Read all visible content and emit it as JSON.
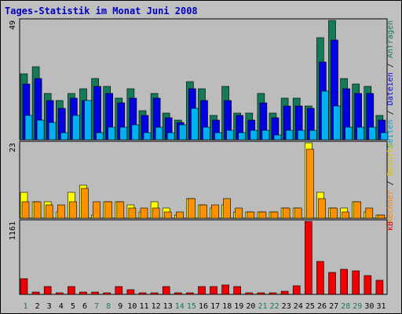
{
  "title": "Tages-Statistik im Monat Juni 2008",
  "chart_data": [
    {
      "type": "bar",
      "ymax_label": "49",
      "ylim": [
        0,
        49
      ],
      "categories": [
        "1",
        "2",
        "3",
        "4",
        "5",
        "6",
        "7",
        "8",
        "9",
        "10",
        "11",
        "12",
        "13",
        "14",
        "15",
        "16",
        "17",
        "18",
        "19",
        "20",
        "21",
        "22",
        "23",
        "24",
        "25",
        "26",
        "27",
        "28",
        "29",
        "30",
        "31"
      ],
      "series": [
        {
          "name": "Anfragen",
          "color": "#157a5a",
          "values": [
            27,
            30,
            19,
            16,
            19,
            21,
            25,
            22,
            17,
            21,
            12,
            19,
            11,
            8,
            24,
            21,
            10,
            22,
            11,
            11,
            19,
            11,
            17,
            17,
            14,
            42,
            49,
            25,
            23,
            22,
            10
          ]
        },
        {
          "name": "Dateien",
          "color": "#0000e0",
          "values": [
            23,
            25,
            16,
            13,
            17,
            16,
            22,
            19,
            15,
            17,
            10,
            17,
            9,
            7,
            21,
            16,
            8,
            16,
            10,
            8,
            15,
            9,
            14,
            14,
            13,
            32,
            41,
            21,
            19,
            19,
            8
          ]
        },
        {
          "name": "Seiten",
          "color": "#00b0f0",
          "values": [
            10,
            8,
            7,
            3,
            10,
            16,
            3,
            5,
            5,
            6,
            3,
            5,
            3,
            6,
            13,
            5,
            3,
            4,
            3,
            4,
            4,
            2,
            4,
            4,
            4,
            20,
            14,
            5,
            5,
            5,
            3
          ]
        }
      ],
      "right_label_parts": [
        {
          "text": "Seiten",
          "color": "#00a0d0"
        },
        {
          "text": " / ",
          "color": "#000000"
        },
        {
          "text": "Dateien",
          "color": "#0000e0"
        },
        {
          "text": " / ",
          "color": "#000000"
        },
        {
          "text": "Anfragen",
          "color": "#157a5a"
        }
      ]
    },
    {
      "type": "bar",
      "ymax_label": "23",
      "ylim": [
        0,
        23
      ],
      "categories": [
        "1",
        "2",
        "3",
        "4",
        "5",
        "6",
        "7",
        "8",
        "9",
        "10",
        "11",
        "12",
        "13",
        "14",
        "15",
        "16",
        "17",
        "18",
        "19",
        "20",
        "21",
        "22",
        "23",
        "24",
        "25",
        "26",
        "27",
        "28",
        "29",
        "30",
        "31"
      ],
      "series": [
        {
          "name": "Besuche",
          "color": "#ffff00",
          "values": [
            8,
            5,
            5,
            2,
            8,
            10,
            1,
            5,
            5,
            4,
            2,
            5,
            3,
            1,
            6,
            4,
            3,
            4,
            2,
            2,
            2,
            2,
            3,
            3,
            23,
            8,
            3,
            3,
            5,
            2,
            1
          ]
        },
        {
          "name": "Rechner",
          "color": "#ff9000",
          "values": [
            5,
            5,
            4,
            4,
            5,
            9,
            5,
            5,
            5,
            3,
            3,
            3,
            2,
            2,
            6,
            4,
            4,
            6,
            3,
            2,
            2,
            2,
            3,
            3,
            21,
            6,
            3,
            2,
            5,
            3,
            1
          ]
        }
      ],
      "right_label_parts": [
        {
          "text": "Rechner",
          "color": "#ff8000"
        },
        {
          "text": " / ",
          "color": "#000000"
        },
        {
          "text": "Besuche",
          "color": "#d8c000"
        }
      ]
    },
    {
      "type": "bar",
      "ymax_label": "1161",
      "ylim": [
        0,
        1161
      ],
      "categories": [
        "1",
        "2",
        "3",
        "4",
        "5",
        "6",
        "7",
        "8",
        "9",
        "10",
        "11",
        "12",
        "13",
        "14",
        "15",
        "16",
        "17",
        "18",
        "19",
        "20",
        "21",
        "22",
        "23",
        "24",
        "25",
        "26",
        "27",
        "28",
        "29",
        "30",
        "31"
      ],
      "series": [
        {
          "name": "kB",
          "color": "#f00000",
          "values": [
            250,
            40,
            120,
            15,
            120,
            40,
            40,
            30,
            120,
            70,
            30,
            30,
            120,
            30,
            30,
            120,
            120,
            150,
            120,
            15,
            15,
            15,
            50,
            140,
            1161,
            520,
            350,
            400,
            370,
            300,
            220
          ]
        }
      ],
      "right_label_parts": [
        {
          "text": "kB",
          "color": "#e00000"
        }
      ]
    }
  ],
  "x_axis": {
    "labels": [
      "1",
      "2",
      "3",
      "4",
      "5",
      "6",
      "7",
      "8",
      "9",
      "10",
      "11",
      "12",
      "13",
      "14",
      "15",
      "16",
      "17",
      "18",
      "19",
      "20",
      "21",
      "22",
      "23",
      "24",
      "25",
      "26",
      "27",
      "28",
      "29",
      "30",
      "31"
    ],
    "weekend_days": [
      "1",
      "7",
      "8",
      "14",
      "15",
      "21",
      "22",
      "28",
      "29"
    ],
    "weekday_color": "#000000",
    "weekend_color": "#157a5a"
  }
}
